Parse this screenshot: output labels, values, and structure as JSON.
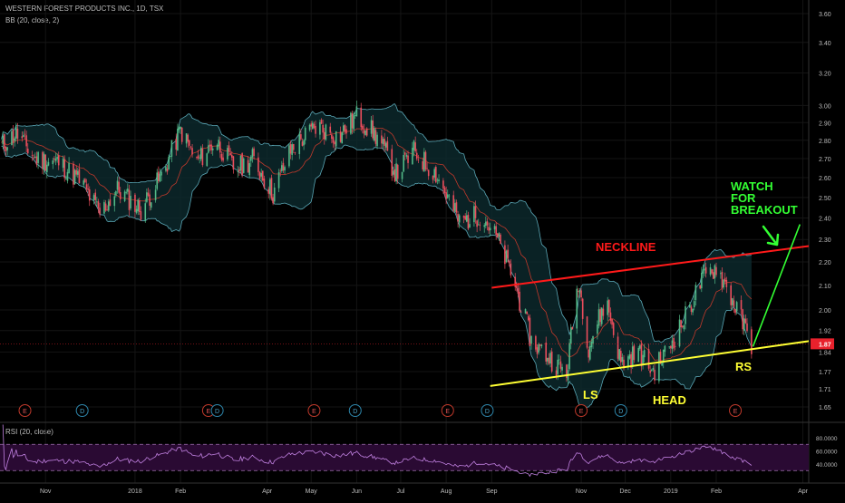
{
  "header": {
    "title": "WESTERN FOREST PRODUCTS INC., 1D, TSX",
    "indicator": "BB (20, close, 2)",
    "rsi_label": "RSI (20, close)"
  },
  "chart_data": {
    "type": "candlestick",
    "price_axis_ticks": [
      "3.60",
      "3.40",
      "3.20",
      "3.00",
      "2.90",
      "2.80",
      "2.70",
      "2.60",
      "2.50",
      "2.40",
      "2.30",
      "2.20",
      "2.10",
      "2.00",
      "1.92",
      "1.84",
      "1.77",
      "1.71",
      "1.65"
    ],
    "price_axis_tick_values": [
      3.6,
      3.4,
      3.2,
      3.0,
      2.9,
      2.8,
      2.7,
      2.6,
      2.5,
      2.4,
      2.3,
      2.2,
      2.1,
      2.0,
      1.92,
      1.84,
      1.77,
      1.71,
      1.65
    ],
    "y_scale": "log",
    "current_price": "1.87",
    "time_axis_labels": [
      "Nov",
      "2018",
      "Feb",
      "Apr",
      "May",
      "Jun",
      "Jul",
      "Aug",
      "Sep",
      "Nov",
      "Dec",
      "2019",
      "Feb",
      "Apr"
    ],
    "time_axis_dates": [
      "2017-11-01",
      "2018-01-01",
      "2018-02-01",
      "2018-04-01",
      "2018-05-01",
      "2018-06-01",
      "2018-07-01",
      "2018-08-01",
      "2018-09-01",
      "2018-11-01",
      "2018-12-01",
      "2019-01-01",
      "2019-02-01",
      "2019-04-01"
    ],
    "x_range": [
      "2017-10-01",
      "2019-04-05"
    ],
    "price_path": [
      [
        "2017-10-01",
        2.76
      ],
      [
        "2017-10-12",
        2.84
      ],
      [
        "2017-10-25",
        2.7
      ],
      [
        "2017-11-10",
        2.68
      ],
      [
        "2017-11-25",
        2.58
      ],
      [
        "2017-12-08",
        2.42
      ],
      [
        "2017-12-20",
        2.54
      ],
      [
        "2018-01-05",
        2.44
      ],
      [
        "2018-01-20",
        2.62
      ],
      [
        "2018-02-01",
        2.86
      ],
      [
        "2018-02-12",
        2.68
      ],
      [
        "2018-02-25",
        2.8
      ],
      [
        "2018-03-10",
        2.64
      ],
      [
        "2018-03-22",
        2.7
      ],
      [
        "2018-04-05",
        2.52
      ],
      [
        "2018-04-18",
        2.76
      ],
      [
        "2018-05-05",
        2.88
      ],
      [
        "2018-05-20",
        2.82
      ],
      [
        "2018-06-01",
        2.94
      ],
      [
        "2018-06-15",
        2.82
      ],
      [
        "2018-06-28",
        2.62
      ],
      [
        "2018-07-10",
        2.74
      ],
      [
        "2018-07-25",
        2.62
      ],
      [
        "2018-08-10",
        2.38
      ],
      [
        "2018-08-25",
        2.42
      ],
      [
        "2018-09-05",
        2.3
      ],
      [
        "2018-09-15",
        2.14
      ],
      [
        "2018-09-28",
        1.88
      ],
      [
        "2018-10-10",
        1.82
      ],
      [
        "2018-10-22",
        1.76
      ],
      [
        "2018-10-30",
        2.12
      ],
      [
        "2018-11-06",
        1.86
      ],
      [
        "2018-11-18",
        2.04
      ],
      [
        "2018-11-28",
        1.8
      ],
      [
        "2018-12-10",
        1.84
      ],
      [
        "2018-12-20",
        1.77
      ],
      [
        "2018-12-31",
        1.86
      ],
      [
        "2019-01-10",
        1.96
      ],
      [
        "2019-01-22",
        2.12
      ],
      [
        "2019-02-01",
        2.18
      ],
      [
        "2019-02-12",
        2.04
      ],
      [
        "2019-02-25",
        1.87
      ]
    ],
    "earnings_markers": [
      {
        "letter": "E",
        "date": "2017-10-18"
      },
      {
        "letter": "D",
        "date": "2017-11-26"
      },
      {
        "letter": "E",
        "date": "2018-02-20"
      },
      {
        "letter": "D",
        "date": "2018-02-26"
      },
      {
        "letter": "E",
        "date": "2018-05-03"
      },
      {
        "letter": "D",
        "date": "2018-05-31"
      },
      {
        "letter": "E",
        "date": "2018-08-02"
      },
      {
        "letter": "D",
        "date": "2018-08-29"
      },
      {
        "letter": "E",
        "date": "2018-11-01"
      },
      {
        "letter": "D",
        "date": "2018-11-28"
      },
      {
        "letter": "E",
        "date": "2019-02-14"
      }
    ],
    "annotations": {
      "neckline_label": "NECKLINE",
      "ls_label": "LS",
      "head_label": "HEAD",
      "rs_label": "RS",
      "watch_label": [
        "WATCH",
        "FOR",
        "BREAKOUT"
      ],
      "neckline": [
        [
          "2018-09-01",
          2.09
        ],
        [
          "2019-04-05",
          2.27
        ]
      ],
      "support": [
        [
          "2018-08-31",
          1.72
        ],
        [
          "2019-04-05",
          1.88
        ]
      ],
      "breakout_arrow": [
        [
          "2019-02-26",
          1.86
        ],
        [
          "2019-03-30",
          2.37
        ]
      ]
    },
    "rsi": {
      "ticks": [
        "80.0000",
        "60.0000",
        "40.0000"
      ],
      "tick_values": [
        80,
        60,
        40
      ],
      "upper_band": 70,
      "lower_band": 30
    },
    "colors": {
      "up": "#53b987",
      "down": "#eb4d5c",
      "bb_band": "#5aa7b6",
      "bb_basis": "#c0392b",
      "neckline": "#ff1a1a",
      "support": "#ffff33",
      "breakout": "#33ff33",
      "rsi_line": "#c080e0",
      "rsi_fill": "#2a0a33",
      "price_tag": "#e8212c"
    }
  }
}
